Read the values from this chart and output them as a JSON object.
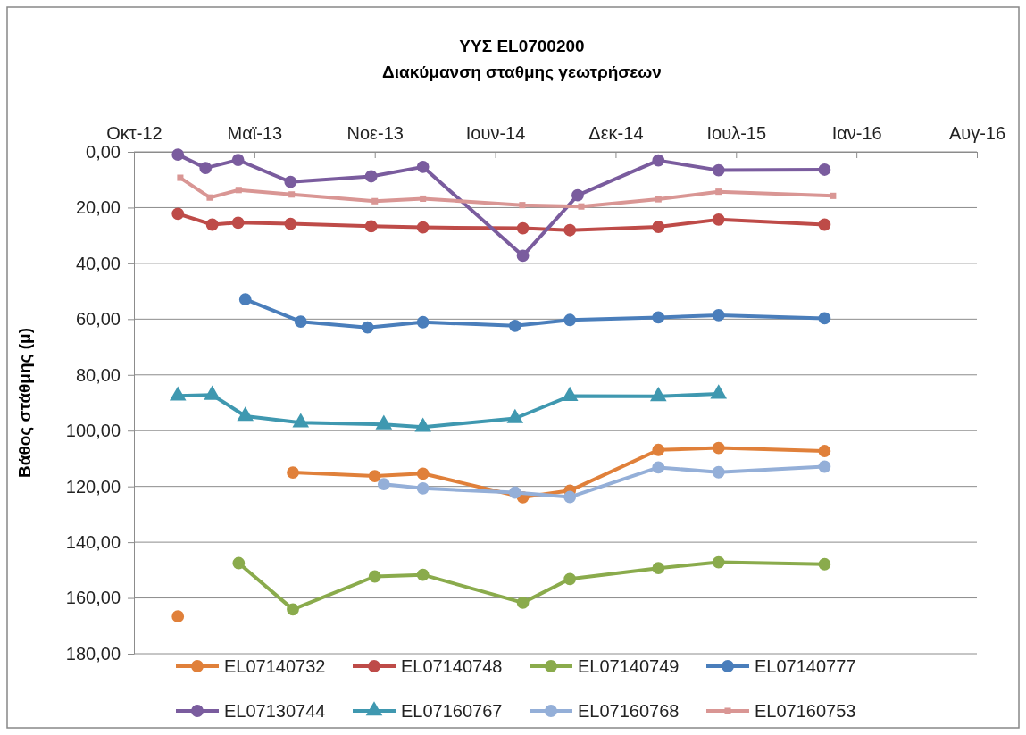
{
  "chart_data": {
    "type": "line",
    "title": "ΥΥΣ EL0700200",
    "subtitle": "Διακύμανση σταθμης γεωτρήσεων",
    "ylabel": "Βάθος στάθμης (μ)",
    "xlim": [
      "2012-10-15",
      "2016-08-15"
    ],
    "xticks": [
      {
        "value": "2012-10-15",
        "label": "Οκτ-12"
      },
      {
        "value": "2013-05-03",
        "label": "Μαϊ-13"
      },
      {
        "value": "2013-11-19",
        "label": "Νοε-13"
      },
      {
        "value": "2014-06-07",
        "label": "Ιουν-14"
      },
      {
        "value": "2014-12-24",
        "label": "Δεκ-14"
      },
      {
        "value": "2015-07-12",
        "label": "Ιουλ-15"
      },
      {
        "value": "2016-01-28",
        "label": "Ιαν-16"
      },
      {
        "value": "2016-08-15",
        "label": "Αυγ-16"
      }
    ],
    "ylim": [
      180,
      0
    ],
    "yticks": [
      {
        "value": 0,
        "label": "0,00"
      },
      {
        "value": 20,
        "label": "20,00"
      },
      {
        "value": 40,
        "label": "40,00"
      },
      {
        "value": 60,
        "label": "60,00"
      },
      {
        "value": 80,
        "label": "80,00"
      },
      {
        "value": 100,
        "label": "100,00"
      },
      {
        "value": 120,
        "label": "120,00"
      },
      {
        "value": 140,
        "label": "140,00"
      },
      {
        "value": 160,
        "label": "160,00"
      },
      {
        "value": 180,
        "label": "180,00"
      }
    ],
    "grid": "y",
    "legend": "bottom",
    "line_style": "solid",
    "series": [
      {
        "name": "EL07140732",
        "color": "#e0803a",
        "marker": "circle",
        "x": [
          "2012-12-27",
          "2013-04-06",
          "2013-07-06",
          "2013-11-19",
          "2014-02-07",
          "2014-07-23",
          "2014-10-09",
          "2015-03-05",
          "2015-06-13",
          "2015-12-06"
        ],
        "values": [
          166.6,
          null,
          115.0,
          116.3,
          115.4,
          123.9,
          121.5,
          106.9,
          106.2,
          107.3
        ]
      },
      {
        "name": "EL07140748",
        "color": "#be4b48",
        "marker": "circle",
        "x": [
          "2012-12-27",
          "2013-02-22",
          "2013-04-06",
          "2013-07-02",
          "2013-11-13",
          "2014-02-07",
          "2014-07-23",
          "2014-10-09",
          "2015-03-05",
          "2015-06-13",
          "2015-12-06"
        ],
        "values": [
          22.2,
          26.1,
          25.4,
          25.8,
          26.7,
          27.1,
          27.4,
          28.1,
          26.9,
          24.3,
          26.1
        ]
      },
      {
        "name": "EL07140749",
        "color": "#8aab4c",
        "marker": "circle",
        "x": [
          "2013-04-07",
          "2013-07-06",
          "2013-11-19",
          "2014-02-07",
          "2014-07-23",
          "2014-10-09",
          "2015-03-05",
          "2015-06-13",
          "2015-12-06"
        ],
        "values": [
          147.5,
          164.1,
          152.3,
          151.7,
          161.7,
          153.2,
          149.3,
          147.2,
          147.9
        ]
      },
      {
        "name": "EL07140777",
        "color": "#4a7ebb",
        "marker": "circle",
        "x": [
          "2013-04-18",
          "2013-07-19",
          "2013-11-07",
          "2014-02-07",
          "2014-07-10",
          "2014-10-09",
          "2015-03-05",
          "2015-06-13",
          "2015-12-06"
        ],
        "values": [
          52.9,
          60.9,
          63.0,
          61.1,
          62.4,
          60.3,
          59.4,
          58.6,
          59.7
        ]
      },
      {
        "name": "EL07130744",
        "color": "#7a5c9e",
        "marker": "circle",
        "x": [
          "2012-12-27",
          "2013-02-11",
          "2013-04-06",
          "2013-07-02",
          "2013-11-13",
          "2014-02-07",
          "2014-07-23",
          "2014-10-22",
          "2015-03-05",
          "2015-06-13",
          "2015-12-06"
        ],
        "values": [
          1.0,
          5.8,
          2.9,
          10.8,
          8.8,
          5.4,
          37.3,
          15.6,
          3.1,
          6.6,
          6.4
        ]
      },
      {
        "name": "EL07160767",
        "color": "#3f98b0",
        "marker": "triangle",
        "x": [
          "2012-12-27",
          "2013-02-22",
          "2013-04-18",
          "2013-07-19",
          "2013-12-04",
          "2014-02-07",
          "2014-07-10",
          "2014-10-09",
          "2015-03-05",
          "2015-06-13"
        ],
        "values": [
          87.5,
          87.2,
          94.8,
          97.1,
          97.8,
          98.7,
          95.6,
          87.6,
          87.7,
          86.8
        ]
      },
      {
        "name": "EL07160768",
        "color": "#94afd8",
        "marker": "circle",
        "x": [
          "2013-12-04",
          "2014-02-07",
          "2014-07-10",
          "2014-10-09",
          "2015-03-05",
          "2015-06-13",
          "2015-12-06"
        ],
        "values": [
          119.2,
          120.7,
          122.2,
          123.8,
          113.2,
          114.9,
          112.9
        ]
      },
      {
        "name": "EL07160753",
        "color": "#d99694",
        "marker": "square",
        "x": [
          "2012-12-31",
          "2013-02-18",
          "2013-04-07",
          "2013-07-04",
          "2013-11-19",
          "2014-02-07",
          "2014-07-22",
          "2014-10-28",
          "2015-03-05",
          "2015-06-13",
          "2015-12-20"
        ],
        "values": [
          9.3,
          16.4,
          13.7,
          15.3,
          17.7,
          16.8,
          19.1,
          19.6,
          17.0,
          14.3,
          15.8
        ]
      }
    ]
  }
}
